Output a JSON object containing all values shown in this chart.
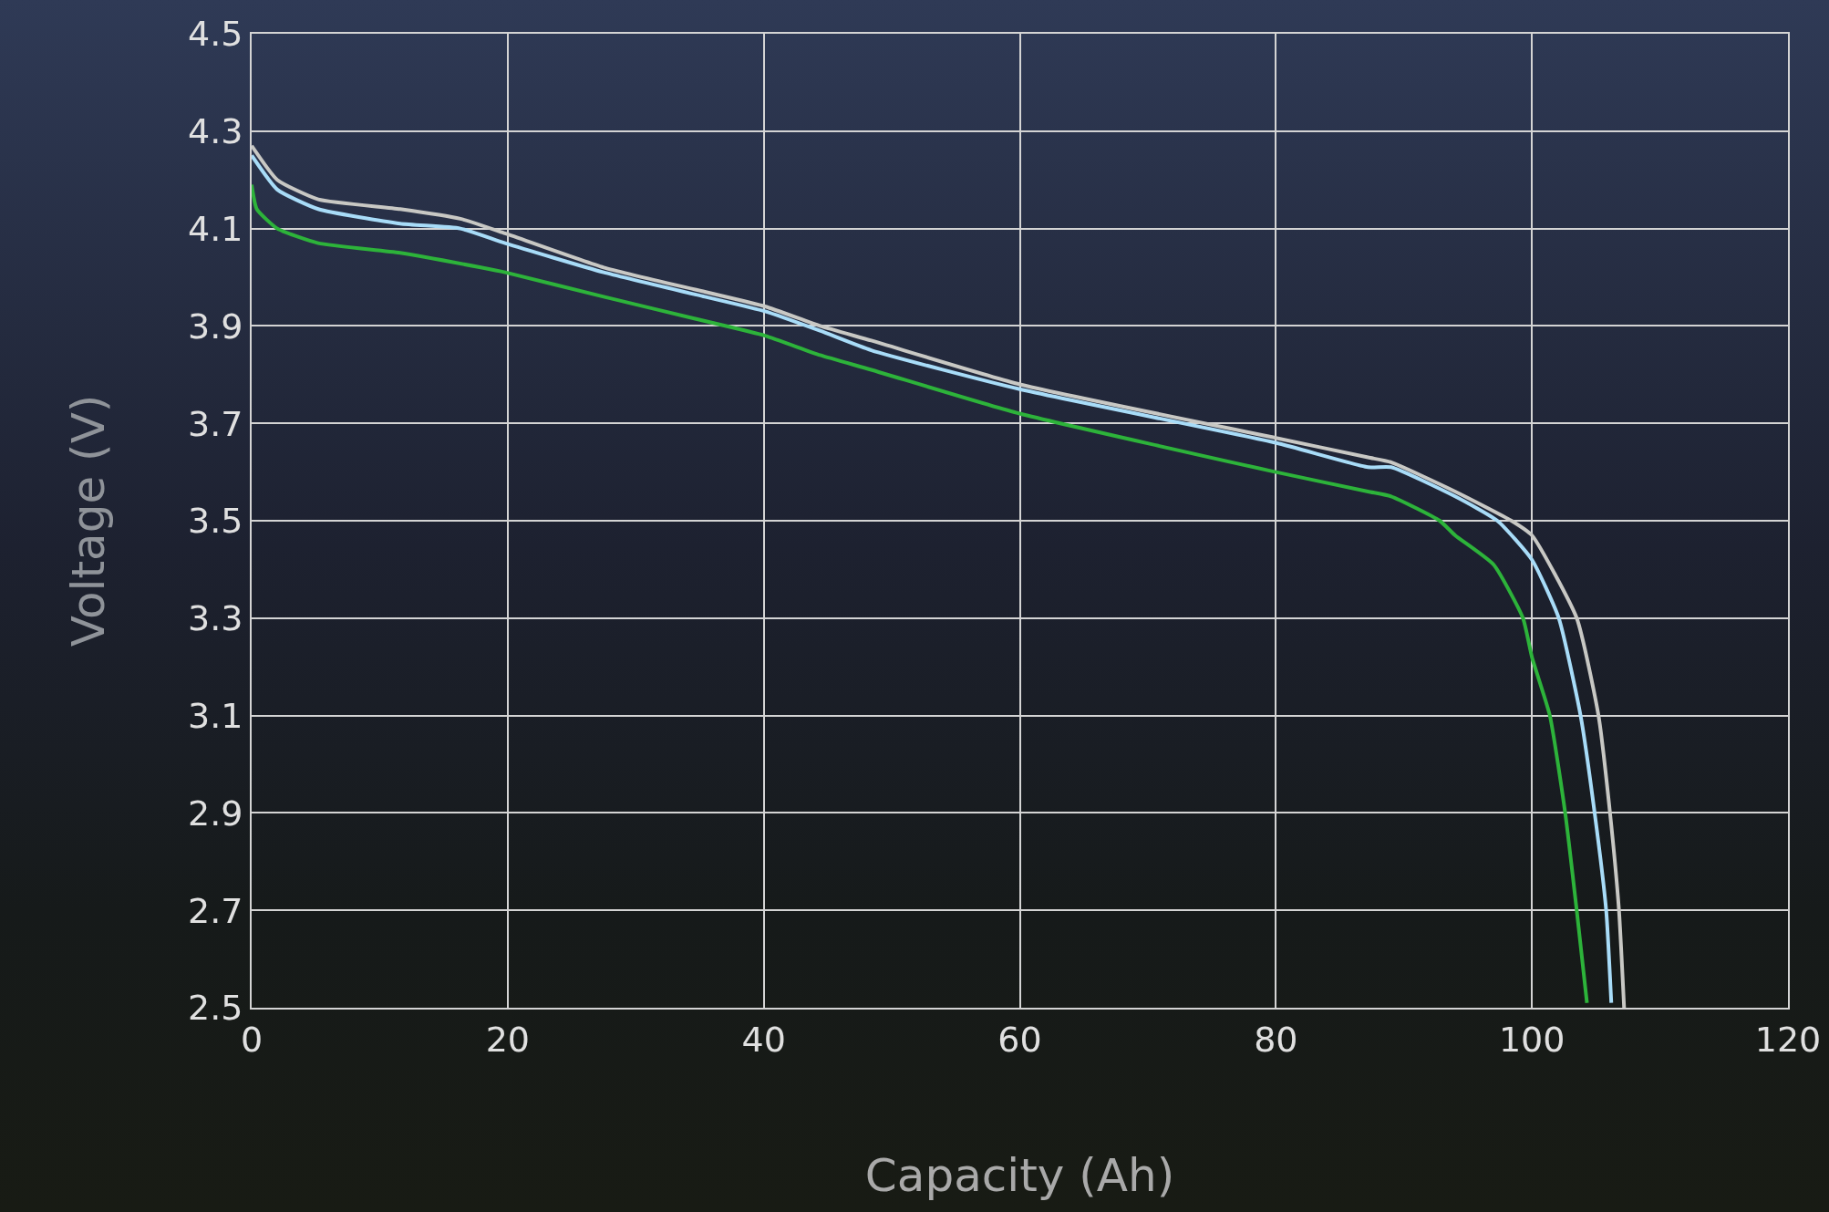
{
  "chart_data": {
    "type": "line",
    "xlabel": "Capacity (Ah)",
    "ylabel": "Voltage (V)",
    "xlim": [
      0,
      120
    ],
    "xticks": [
      0,
      20,
      40,
      60,
      80,
      100,
      120
    ],
    "ylim": [
      2.5,
      4.5
    ],
    "yticks": [
      2.5,
      2.7,
      2.9,
      3.1,
      3.3,
      3.5,
      3.7,
      3.9,
      4.1,
      4.3,
      4.5
    ],
    "grid": true,
    "marker": "none",
    "line_style": "solid",
    "series": [
      {
        "color": "#c8c8c4",
        "x": [
          0,
          2,
          5.2,
          11.6,
          16.3,
          19.8,
          27.5,
          35.4,
          40.1,
          44.4,
          48.4,
          60,
          80,
          87.2,
          89,
          94,
          98.4,
          100,
          103.5,
          105.2,
          106.1,
          106.8,
          107.2
        ],
        "values": [
          4.27,
          4.2,
          4.16,
          4.14,
          4.12,
          4.09,
          4.02,
          3.97,
          3.94,
          3.9,
          3.87,
          3.78,
          3.67,
          3.63,
          3.62,
          3.56,
          3.5,
          3.47,
          3.3,
          3.1,
          2.9,
          2.7,
          2.5
        ]
      },
      {
        "color": "#a8dcf8",
        "x": [
          0,
          2,
          5.2,
          11.6,
          16.3,
          19.8,
          27.5,
          35.4,
          40.1,
          44.4,
          48.4,
          60,
          80,
          87.2,
          89,
          94,
          97.3,
          100,
          102.1,
          103.8,
          104.9,
          105.8,
          106.2
        ],
        "values": [
          4.25,
          4.18,
          4.14,
          4.11,
          4.1,
          4.07,
          4.01,
          3.96,
          3.93,
          3.89,
          3.85,
          3.77,
          3.66,
          3.61,
          3.61,
          3.55,
          3.5,
          3.42,
          3.3,
          3.1,
          2.9,
          2.7,
          2.51
        ]
      },
      {
        "color": "#2db33a",
        "x": [
          0,
          0.4,
          2,
          5.2,
          11.6,
          17.9,
          19.8,
          27.5,
          35.4,
          40.1,
          44.4,
          48.4,
          60,
          80,
          87.2,
          89,
          92.8,
          94,
          97,
          99.3,
          100,
          101.4,
          102.6,
          103.5,
          104.3
        ],
        "values": [
          4.19,
          4.14,
          4.1,
          4.07,
          4.05,
          4.02,
          4.01,
          3.96,
          3.91,
          3.88,
          3.84,
          3.81,
          3.72,
          3.6,
          3.56,
          3.55,
          3.5,
          3.47,
          3.41,
          3.3,
          3.22,
          3.1,
          2.9,
          2.7,
          2.51
        ]
      }
    ]
  }
}
